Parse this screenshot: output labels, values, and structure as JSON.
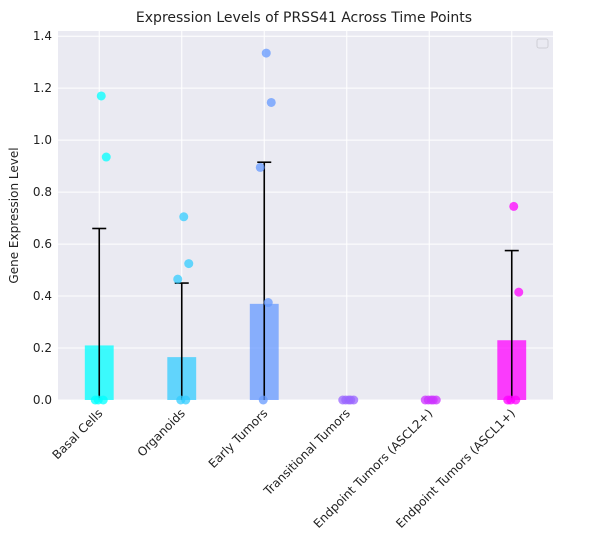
{
  "chart_data": {
    "type": "bar",
    "title": "Expression Levels of PRSS41 Across Time Points",
    "xlabel": "",
    "ylabel": "Gene Expression Level",
    "ylim": [
      0,
      1.42
    ],
    "yticks": [
      "0.0",
      "0.2",
      "0.4",
      "0.6",
      "0.8",
      "1.0",
      "1.2",
      "1.4"
    ],
    "grid": true,
    "legend": "top-right, empty",
    "categories": [
      "Basal Cells",
      "Organoids",
      "Early Tumors",
      "Transitional Tumors",
      "Endpoint Tumors (ASCL2+)",
      "Endpoint Tumors (ASCL1+)"
    ],
    "values": [
      0.21,
      0.165,
      0.37,
      0.0,
      0.0,
      0.23
    ],
    "errors": [
      0.45,
      0.285,
      0.545,
      0.0,
      0.0,
      0.345
    ],
    "points": [
      [
        1.17,
        0.935,
        0.0,
        0.0,
        0.0
      ],
      [
        0.705,
        0.525,
        0.465,
        0.0,
        0.0
      ],
      [
        1.335,
        1.145,
        0.895,
        0.375,
        0.0
      ],
      [
        0.0,
        0.0,
        0.0,
        0.0,
        0.0
      ],
      [
        0.0,
        0.0,
        0.0,
        0.0,
        0.0
      ],
      [
        0.745,
        0.415,
        0.0,
        0.0,
        0.0
      ]
    ],
    "colors": [
      "#00ffff",
      "#33ccff",
      "#6699ff",
      "#9966ff",
      "#cc33ff",
      "#ff00ff"
    ],
    "plot_background": "#eaeaf2",
    "grid_color": "#ffffff"
  }
}
